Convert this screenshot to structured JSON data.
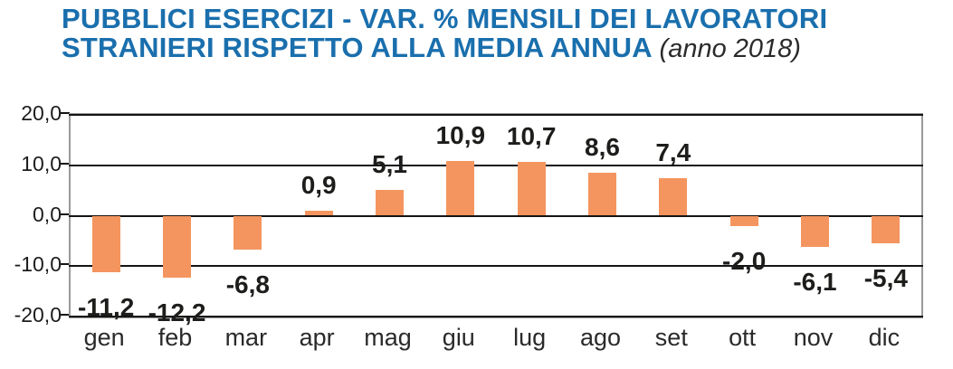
{
  "title": {
    "line1": "PUBBLICI ESERCIZI - VAR. % MENSILI DEI LAVORATORI",
    "line2_main": "STRANIERI RISPETTO ALLA MEDIA ANNUA",
    "line2_note": "(anno 2018)"
  },
  "colors": {
    "title_blue": "#1a6fad",
    "bar_orange": "#f4955f",
    "value_label_dark": "#1d1d1b",
    "grid_black": "#141414",
    "frame_gray": "#9a9a9a"
  },
  "chart_data": {
    "type": "bar",
    "title": "PUBBLICI ESERCIZI - VAR. % MENSILI DEI LAVORATORI STRANIERI RISPETTO ALLA MEDIA ANNUA (anno 2018)",
    "categories": [
      "gen",
      "feb",
      "mar",
      "apr",
      "mag",
      "giu",
      "lug",
      "ago",
      "set",
      "ott",
      "nov",
      "dic"
    ],
    "values": [
      -11.2,
      -12.2,
      -6.8,
      0.9,
      5.1,
      10.9,
      10.7,
      8.6,
      7.4,
      -2.0,
      -6.1,
      -5.4
    ],
    "value_labels": [
      "-11,2",
      "-12,2",
      "-6,8",
      "0,9",
      "5,1",
      "10,9",
      "10,7",
      "8,6",
      "7,4",
      "-2,0",
      "-6,1",
      "-5,4"
    ],
    "y_tick_labels": [
      "20,0",
      "10,0",
      "0,0",
      "-10,0",
      "-20,0"
    ],
    "y_tick_values": [
      20,
      10,
      0,
      -10,
      -20
    ],
    "ylim": [
      -20,
      20
    ],
    "xlabel": "",
    "ylabel": "",
    "grid": true,
    "legend": false
  }
}
